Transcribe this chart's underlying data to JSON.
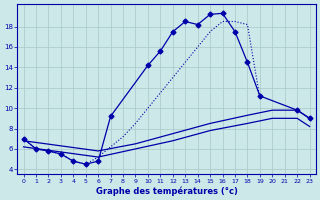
{
  "xlabel": "Graphe des températures (°c)",
  "background_color": "#cce8e8",
  "grid_color": "#a8c8c8",
  "line_color": "#0000aa",
  "dotted_x": [
    0,
    1,
    2,
    3,
    4,
    5,
    6,
    7,
    8,
    9,
    10,
    11,
    12,
    13,
    14,
    15,
    16,
    17,
    18,
    19
  ],
  "dotted_y": [
    7.0,
    6.0,
    5.8,
    5.5,
    4.8,
    4.5,
    5.2,
    6.2,
    7.2,
    8.5,
    10.0,
    11.5,
    13.0,
    14.5,
    16.0,
    17.5,
    18.5,
    18.5,
    18.2,
    11.0
  ],
  "marked_x": [
    0,
    1,
    2,
    3,
    4,
    5,
    6,
    7,
    10,
    11,
    12,
    13,
    14,
    15,
    16,
    17,
    18,
    19,
    22,
    23
  ],
  "marked_y": [
    7.0,
    6.0,
    5.8,
    5.5,
    4.8,
    4.5,
    4.8,
    9.2,
    14.2,
    15.6,
    17.5,
    18.5,
    18.2,
    19.2,
    19.3,
    17.5,
    14.5,
    11.2,
    9.8,
    9.0
  ],
  "flat1_x": [
    0,
    6,
    9,
    12,
    15,
    18,
    20,
    21,
    22,
    23
  ],
  "flat1_y": [
    6.8,
    5.8,
    6.5,
    7.5,
    8.5,
    9.3,
    9.8,
    9.8,
    9.8,
    9.0
  ],
  "flat2_x": [
    0,
    6,
    9,
    12,
    15,
    18,
    20,
    21,
    22,
    23
  ],
  "flat2_y": [
    6.2,
    5.2,
    6.0,
    6.8,
    7.8,
    8.5,
    9.0,
    9.0,
    9.0,
    8.2
  ],
  "ylim": [
    3.5,
    20.2
  ],
  "yticks": [
    4,
    6,
    8,
    10,
    12,
    14,
    16,
    18
  ],
  "xlim": [
    -0.5,
    23.5
  ],
  "xticks": [
    0,
    1,
    2,
    3,
    4,
    5,
    6,
    7,
    8,
    9,
    10,
    11,
    12,
    13,
    14,
    15,
    16,
    17,
    18,
    19,
    20,
    21,
    22,
    23
  ]
}
